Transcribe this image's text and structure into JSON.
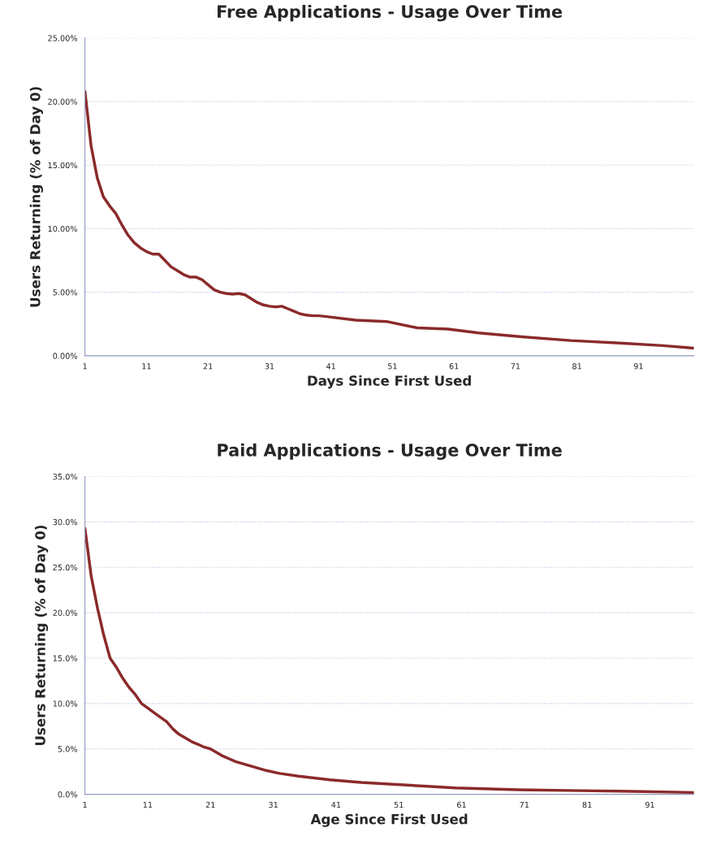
{
  "chart_data": [
    {
      "type": "line",
      "title": "Free Applications - Usage Over Time",
      "xlabel": "Days Since First Used",
      "ylabel": "Users Returning (% of Day 0)",
      "grid": "y",
      "xlim": [
        1,
        100
      ],
      "xticks": [
        1,
        11,
        21,
        31,
        41,
        51,
        61,
        71,
        81,
        91
      ],
      "ylim": [
        0,
        25
      ],
      "yticks": [
        {
          "value": 0,
          "label": "0.00%"
        },
        {
          "value": 5,
          "label": "5.00%"
        },
        {
          "value": 10,
          "label": "10.00%"
        },
        {
          "value": 15,
          "label": "15.00%"
        },
        {
          "value": 20,
          "label": "20.00%"
        },
        {
          "value": 25,
          "label": "25.00%"
        }
      ],
      "series": [
        {
          "color": "#8b2a2a",
          "x": [
            1,
            2,
            3,
            4,
            5,
            6,
            7,
            8,
            9,
            10,
            11,
            12,
            13,
            14,
            15,
            16,
            17,
            18,
            19,
            20,
            21,
            22,
            23,
            24,
            25,
            26,
            27,
            28,
            29,
            30,
            31,
            32,
            33,
            34,
            35,
            36,
            37,
            38,
            39,
            40,
            45,
            50,
            55,
            60,
            65,
            72,
            80,
            88,
            95,
            100
          ],
          "values": [
            20.8,
            16.5,
            14,
            12.5,
            11.8,
            11.2,
            10.3,
            9.5,
            8.9,
            8.5,
            8.2,
            8.0,
            8.0,
            7.5,
            7.0,
            6.7,
            6.4,
            6.2,
            6.2,
            6.0,
            5.6,
            5.2,
            5.0,
            4.9,
            4.85,
            4.9,
            4.8,
            4.5,
            4.2,
            4.0,
            3.9,
            3.85,
            3.9,
            3.7,
            3.5,
            3.3,
            3.2,
            3.15,
            3.15,
            3.1,
            2.8,
            2.7,
            2.2,
            2.1,
            1.8,
            1.5,
            1.2,
            1.0,
            0.8,
            0.6
          ]
        }
      ]
    },
    {
      "type": "line",
      "title": "Paid Applications - Usage Over Time",
      "xlabel": "Age Since First Used",
      "ylabel": "Users Returning (% of Day 0)",
      "grid": "y",
      "xlim": [
        1,
        98
      ],
      "xticks": [
        1,
        11,
        21,
        31,
        41,
        51,
        61,
        71,
        81,
        91
      ],
      "ylim": [
        0,
        35
      ],
      "yticks": [
        {
          "value": 0,
          "label": "0.0%"
        },
        {
          "value": 5,
          "label": "5.0%"
        },
        {
          "value": 10,
          "label": "10.0%"
        },
        {
          "value": 15,
          "label": "15.0%"
        },
        {
          "value": 20,
          "label": "20.0%"
        },
        {
          "value": 25,
          "label": "25.0%"
        },
        {
          "value": 30,
          "label": "30.0%"
        },
        {
          "value": 35,
          "label": "35.0%"
        }
      ],
      "series": [
        {
          "color": "#8b2a2a",
          "x": [
            1,
            2,
            3,
            4,
            5,
            6,
            7,
            8,
            9,
            10,
            11,
            12,
            13,
            14,
            15,
            16,
            17,
            18,
            19,
            20,
            21,
            22,
            23,
            24,
            25,
            26,
            27,
            28,
            29,
            30,
            32,
            35,
            40,
            45,
            50,
            55,
            60,
            70,
            80,
            90,
            98
          ],
          "values": [
            29.3,
            24,
            20.5,
            17.5,
            15,
            14,
            12.8,
            11.8,
            11,
            10,
            9.5,
            9,
            8.5,
            8,
            7.2,
            6.6,
            6.2,
            5.8,
            5.5,
            5.2,
            5.0,
            4.6,
            4.2,
            3.9,
            3.6,
            3.4,
            3.2,
            3.0,
            2.8,
            2.6,
            2.3,
            2.0,
            1.6,
            1.3,
            1.1,
            0.9,
            0.7,
            0.5,
            0.4,
            0.3,
            0.2
          ]
        }
      ]
    }
  ]
}
